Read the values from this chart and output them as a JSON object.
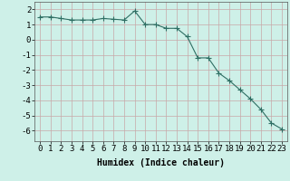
{
  "x": [
    0,
    1,
    2,
    3,
    4,
    5,
    6,
    7,
    8,
    9,
    10,
    11,
    12,
    13,
    14,
    15,
    16,
    17,
    18,
    19,
    20,
    21,
    22,
    23
  ],
  "y": [
    1.5,
    1.5,
    1.4,
    1.3,
    1.3,
    1.3,
    1.4,
    1.35,
    1.3,
    1.9,
    1.0,
    1.0,
    0.75,
    0.75,
    0.2,
    -1.2,
    -1.2,
    -2.2,
    -2.7,
    -3.3,
    -3.9,
    -4.6,
    -5.5,
    -5.9
  ],
  "line_color": "#2e6e63",
  "marker": "+",
  "markersize": 4,
  "linewidth": 0.8,
  "bg_color": "#cef0e8",
  "grid_color_v": "#c8a8a8",
  "grid_color_h": "#c8a8a8",
  "xlabel": "Humidex (Indice chaleur)",
  "xlabel_fontsize": 7,
  "tick_fontsize": 6.5,
  "xlim": [
    -0.5,
    23.5
  ],
  "ylim": [
    -6.7,
    2.5
  ],
  "yticks": [
    2,
    1,
    0,
    -1,
    -2,
    -3,
    -4,
    -5,
    -6
  ],
  "xticks": [
    0,
    1,
    2,
    3,
    4,
    5,
    6,
    7,
    8,
    9,
    10,
    11,
    12,
    13,
    14,
    15,
    16,
    17,
    18,
    19,
    20,
    21,
    22,
    23
  ]
}
